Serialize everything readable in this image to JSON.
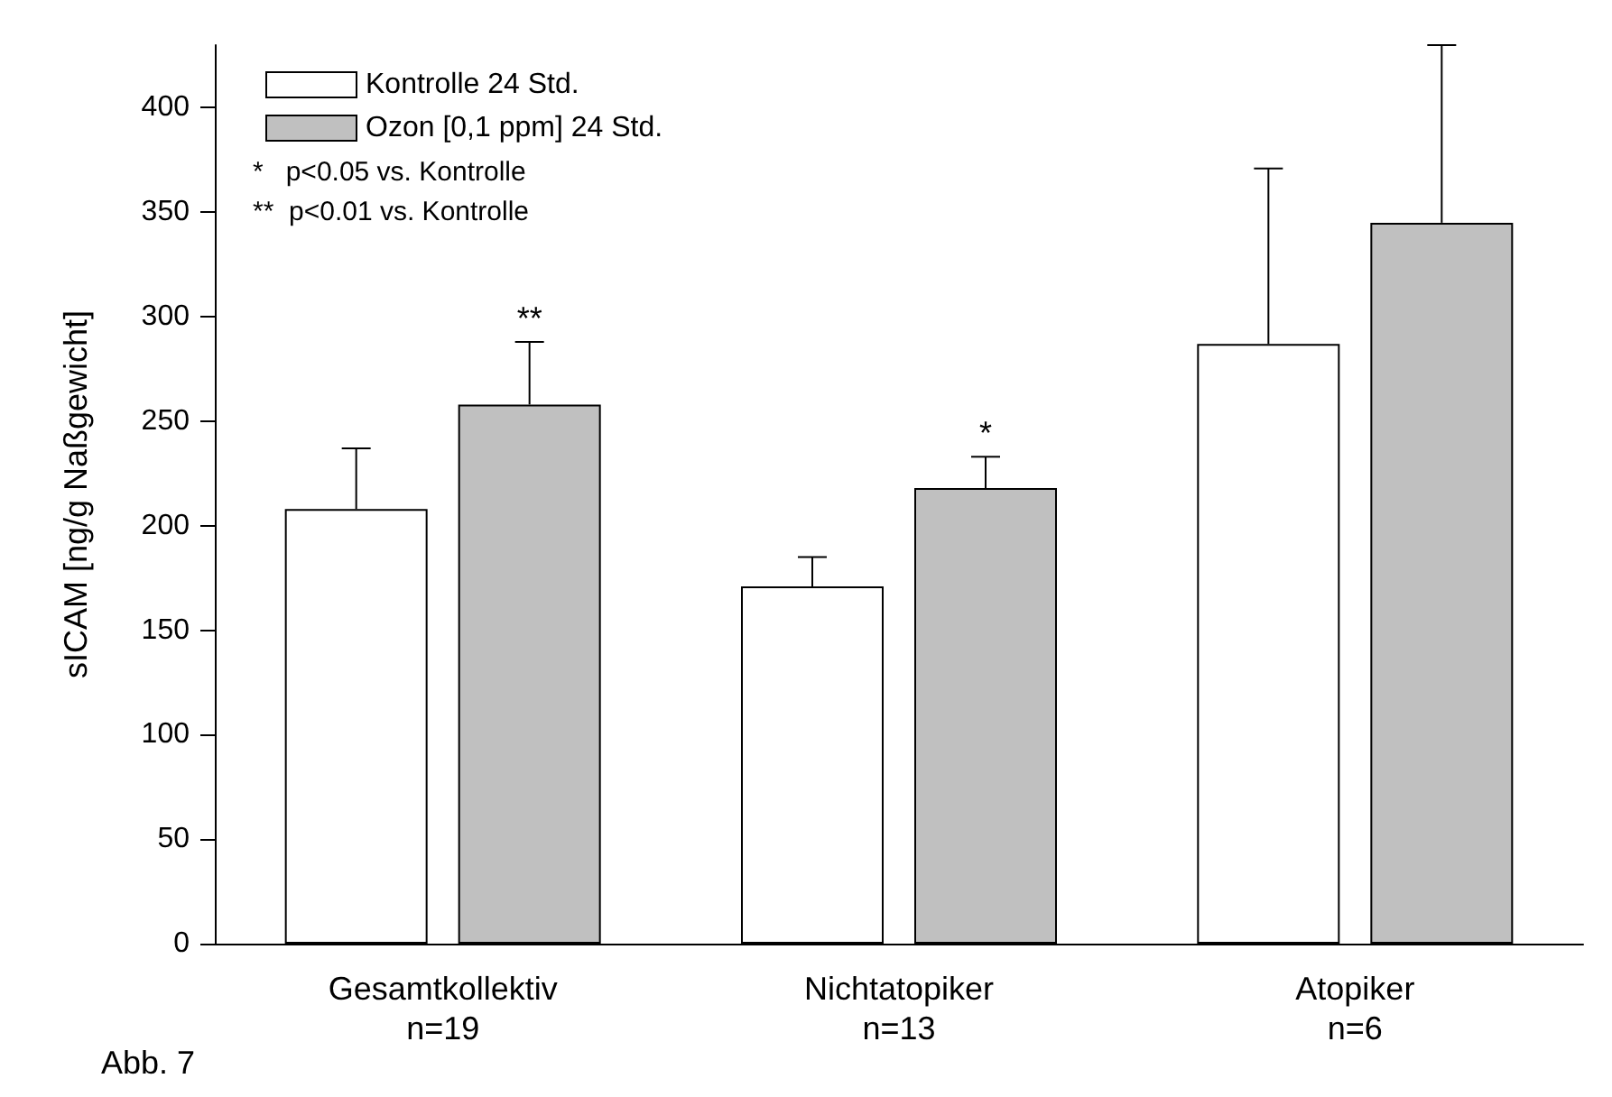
{
  "chart_data": {
    "type": "bar",
    "ylabel": "sICAM [ng/g Naßgewicht]",
    "categories": [
      "Gesamtkollektiv\nn=19",
      "Nichtatopiker\nn=13",
      "Atopiker\nn=6"
    ],
    "series": [
      {
        "name": "Kontrolle 24 Std.",
        "color": "#ffffff",
        "values": [
          208,
          171,
          287
        ],
        "errors": [
          [
            208,
            237
          ],
          [
            171,
            185
          ],
          [
            287,
            371
          ]
        ]
      },
      {
        "name": "Ozon [0,1 ppm] 24 Std.",
        "color": "#c0c0c0",
        "values": [
          258,
          218,
          345
        ],
        "errors": [
          [
            258,
            288
          ],
          [
            218,
            233
          ],
          [
            345,
            430
          ]
        ]
      }
    ],
    "ylim": [
      0,
      430
    ],
    "yticks": [
      0,
      50,
      100,
      150,
      200,
      250,
      300,
      350,
      400
    ],
    "grid": false,
    "legend": "top left",
    "annotations": [
      "**",
      "*",
      "*   p<0.05 vs. Kontrolle",
      "**  p<0.01 vs. Kontrolle",
      "Abb. 7"
    ]
  }
}
